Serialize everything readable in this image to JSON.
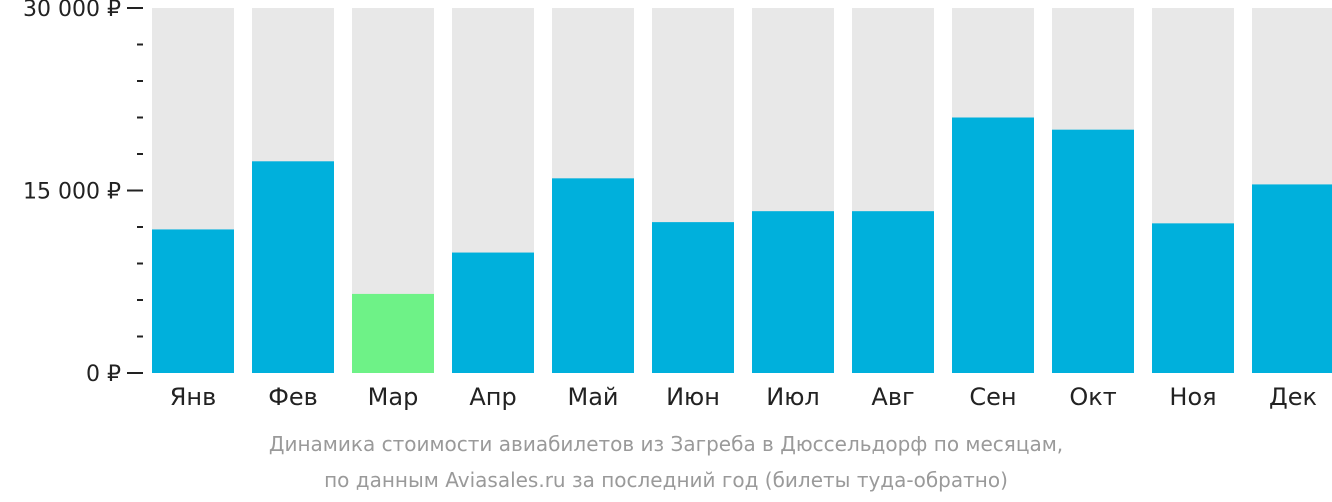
{
  "chart_data": {
    "type": "bar",
    "categories": [
      "Янв",
      "Фев",
      "Мар",
      "Апр",
      "Май",
      "Июн",
      "Июл",
      "Авг",
      "Сен",
      "Окт",
      "Ноя",
      "Дек"
    ],
    "values": [
      11800,
      17400,
      6500,
      9900,
      16000,
      12400,
      13300,
      13300,
      21000,
      20000,
      12300,
      15500
    ],
    "highlight_index": 2,
    "ylim": [
      0,
      30000
    ],
    "yticks": [
      {
        "value": 0,
        "label": "0 ₽"
      },
      {
        "value": 15000,
        "label": "15 000 ₽"
      },
      {
        "value": 30000,
        "label": "30 000 ₽"
      }
    ],
    "minor_tick_step": 3000,
    "caption_lines": [
      "Динамика стоимости авиабилетов из Загреба в Дюссельдорф по месяцам,",
      "по данным Aviasales.ru за последний год (билеты туда-обратно)"
    ],
    "colors": {
      "bar": "#00b0dc",
      "bar_highlight": "#6ef287",
      "bar_background": "#e8e8e8",
      "axis_text": "#222222",
      "tick": "#222222",
      "caption": "#9a9a9a"
    }
  }
}
